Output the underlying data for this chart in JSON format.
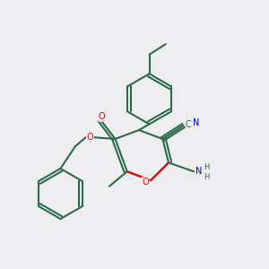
{
  "background_color": "#eeeef0",
  "bond_color": "#2d6b4a",
  "atom_colors": {
    "O": "#ff0000",
    "N": "#0000cc",
    "C": "#2d6b4a",
    "H": "#2d6b4a"
  },
  "figsize": [
    3.0,
    3.0
  ],
  "dpi": 100
}
